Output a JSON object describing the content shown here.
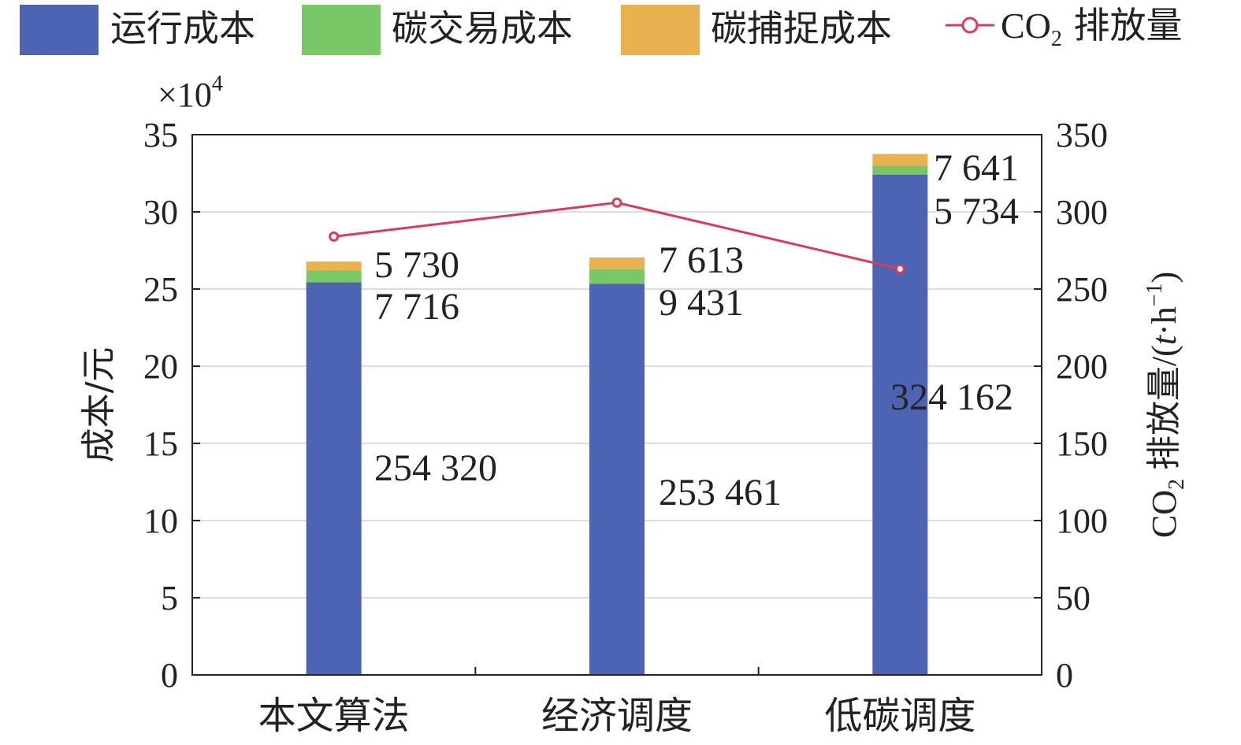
{
  "chart_data": {
    "type": "bar",
    "categories": [
      "本文算法",
      "经济调度",
      "低碳调度"
    ],
    "stacks": [
      {
        "name": "运行成本",
        "color": "#4d64b5",
        "values": [
          254320,
          253461,
          324162
        ]
      },
      {
        "name": "碳交易成本",
        "color": "#79c766",
        "values": [
          7716,
          9431,
          5734
        ]
      },
      {
        "name": "碳捕捉成本",
        "color": "#eab24f",
        "values": [
          5730,
          7613,
          7641
        ]
      }
    ],
    "line_series": {
      "name": "CO2 排放量",
      "color": "#d83c57",
      "values": [
        284,
        306,
        263
      ]
    },
    "data_labels": [
      [
        "254 320",
        "7 716",
        "5 730"
      ],
      [
        "253 461",
        "9 431",
        "7 613"
      ],
      [
        "324 162",
        "5 734",
        "7 641"
      ]
    ],
    "left_axis": {
      "label": "成本/元",
      "multiplier": "×10",
      "multiplier_exp": "4",
      "ylim": [
        0,
        35
      ],
      "ticks": [
        "0",
        "5",
        "10",
        "15",
        "20",
        "25",
        "30",
        "35"
      ]
    },
    "right_axis": {
      "label_prefix": "CO",
      "label_sub": "2",
      "label_main": " 排放量/(",
      "label_t": "t",
      "label_dot": "·h",
      "label_sup": "−1",
      "label_close": ")",
      "ylim": [
        0,
        350
      ],
      "ticks": [
        "0",
        "50",
        "100",
        "150",
        "200",
        "250",
        "300",
        "350"
      ]
    },
    "legend": [
      {
        "label": "运行成本",
        "kind": "box",
        "color": "#4d64b5"
      },
      {
        "label": "碳交易成本",
        "kind": "box",
        "color": "#79c766"
      },
      {
        "label": "碳捕捉成本",
        "kind": "box",
        "color": "#eab24f"
      },
      {
        "label": "CO",
        "sub": "2",
        "suffix": " 排放量",
        "kind": "line",
        "color": "#d83c57"
      }
    ],
    "grid": true,
    "legend_position": "top"
  }
}
